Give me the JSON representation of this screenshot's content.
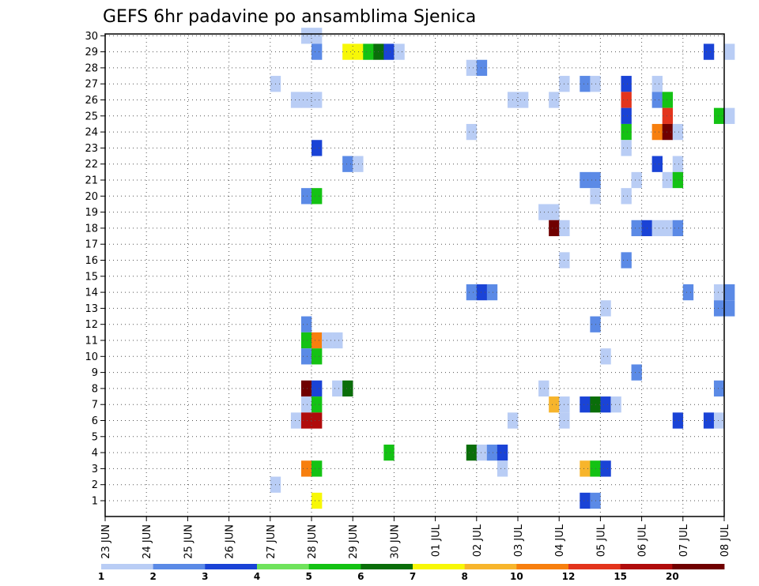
{
  "chart_data": {
    "type": "heatmap",
    "title": "GEFS 6hr padavine po ansamblima Sjenica",
    "x_tick_labels": [
      "23 JUN",
      "24 JUN",
      "25 JUN",
      "26 JUN",
      "27 JUN",
      "28 JUN",
      "29 JUN",
      "30 JUN",
      "01 JUL",
      "02 JUL",
      "03 JUL",
      "04 JUL",
      "05 JUL",
      "06 JUL",
      "07 JUL",
      "08 JUL"
    ],
    "y_tick_labels": [
      "1",
      "2",
      "3",
      "4",
      "5",
      "6",
      "7",
      "8",
      "9",
      "10",
      "11",
      "12",
      "13",
      "14",
      "15",
      "16",
      "17",
      "18",
      "19",
      "20",
      "21",
      "22",
      "23",
      "24",
      "25",
      "26",
      "27",
      "28",
      "29",
      "30"
    ],
    "x_range": [
      "23 JUN",
      "08 JUL"
    ],
    "y_range": [
      1,
      30
    ],
    "time_step_hours": 6,
    "grid": "dotted",
    "colorbar": {
      "position": "bottom",
      "labels": [
        "1",
        "2",
        "3",
        "4",
        "5",
        "6",
        "7",
        "8",
        "10",
        "12",
        "15",
        "20"
      ],
      "colors": [
        "#b9cdf5",
        "#5b8ae6",
        "#1a43d6",
        "#6fe35c",
        "#14c214",
        "#0a6e0a",
        "#f7f707",
        "#f7b52c",
        "#f77f0e",
        "#e3341c",
        "#b00c0c",
        "#700000"
      ]
    },
    "cells": [
      {
        "member": 30,
        "day": "27 JUN",
        "hour": 18,
        "precip": 1.5
      },
      {
        "member": 30,
        "day": "28 JUN",
        "hour": 0,
        "precip": 1.5
      },
      {
        "member": 29,
        "day": "28 JUN",
        "hour": 0,
        "precip": 2.5
      },
      {
        "member": 29,
        "day": "28 JUN",
        "hour": 18,
        "precip": 7.5
      },
      {
        "member": 29,
        "day": "29 JUN",
        "hour": 0,
        "precip": 7.5
      },
      {
        "member": 29,
        "day": "29 JUN",
        "hour": 6,
        "precip": 5.5
      },
      {
        "member": 29,
        "day": "29 JUN",
        "hour": 12,
        "precip": 6.5
      },
      {
        "member": 29,
        "day": "29 JUN",
        "hour": 18,
        "precip": 3.5
      },
      {
        "member": 29,
        "day": "30 JUN",
        "hour": 0,
        "precip": 1.5
      },
      {
        "member": 29,
        "day": "07 JUL",
        "hour": 12,
        "precip": 3.5
      },
      {
        "member": 29,
        "day": "08 JUL",
        "hour": 0,
        "precip": 1.5
      },
      {
        "member": 28,
        "day": "01 JUL",
        "hour": 18,
        "precip": 1.5
      },
      {
        "member": 28,
        "day": "02 JUL",
        "hour": 0,
        "precip": 2.5
      },
      {
        "member": 27,
        "day": "27 JUN",
        "hour": 0,
        "precip": 1.5
      },
      {
        "member": 27,
        "day": "04 JUL",
        "hour": 0,
        "precip": 1.5
      },
      {
        "member": 27,
        "day": "04 JUL",
        "hour": 12,
        "precip": 2.5
      },
      {
        "member": 27,
        "day": "04 JUL",
        "hour": 18,
        "precip": 1.5
      },
      {
        "member": 27,
        "day": "05 JUL",
        "hour": 12,
        "precip": 3.5
      },
      {
        "member": 27,
        "day": "06 JUL",
        "hour": 6,
        "precip": 1.5
      },
      {
        "member": 26,
        "day": "27 JUN",
        "hour": 12,
        "precip": 1.5
      },
      {
        "member": 26,
        "day": "27 JUN",
        "hour": 18,
        "precip": 1.5
      },
      {
        "member": 26,
        "day": "28 JUN",
        "hour": 0,
        "precip": 1.5
      },
      {
        "member": 26,
        "day": "02 JUL",
        "hour": 18,
        "precip": 1.5
      },
      {
        "member": 26,
        "day": "03 JUL",
        "hour": 0,
        "precip": 1.5
      },
      {
        "member": 26,
        "day": "03 JUL",
        "hour": 18,
        "precip": 1.5
      },
      {
        "member": 26,
        "day": "05 JUL",
        "hour": 12,
        "precip": 13.5
      },
      {
        "member": 26,
        "day": "06 JUL",
        "hour": 6,
        "precip": 2.5
      },
      {
        "member": 26,
        "day": "06 JUL",
        "hour": 12,
        "precip": 5.5
      },
      {
        "member": 25,
        "day": "05 JUL",
        "hour": 12,
        "precip": 3.5
      },
      {
        "member": 25,
        "day": "06 JUL",
        "hour": 12,
        "precip": 13.5
      },
      {
        "member": 25,
        "day": "07 JUL",
        "hour": 18,
        "precip": 5.5
      },
      {
        "member": 25,
        "day": "08 JUL",
        "hour": 0,
        "precip": 1.5
      },
      {
        "member": 24,
        "day": "01 JUL",
        "hour": 18,
        "precip": 1.5
      },
      {
        "member": 24,
        "day": "05 JUL",
        "hour": 12,
        "precip": 5.5
      },
      {
        "member": 24,
        "day": "06 JUL",
        "hour": 6,
        "precip": 11
      },
      {
        "member": 24,
        "day": "06 JUL",
        "hour": 12,
        "precip": 22
      },
      {
        "member": 24,
        "day": "06 JUL",
        "hour": 18,
        "precip": 1.5
      },
      {
        "member": 23,
        "day": "28 JUN",
        "hour": 0,
        "precip": 3.5
      },
      {
        "member": 23,
        "day": "05 JUL",
        "hour": 12,
        "precip": 1.5
      },
      {
        "member": 22,
        "day": "28 JUN",
        "hour": 18,
        "precip": 2.5
      },
      {
        "member": 22,
        "day": "29 JUN",
        "hour": 0,
        "precip": 1.5
      },
      {
        "member": 22,
        "day": "06 JUL",
        "hour": 6,
        "precip": 3.5
      },
      {
        "member": 22,
        "day": "06 JUL",
        "hour": 18,
        "precip": 1.5
      },
      {
        "member": 21,
        "day": "04 JUL",
        "hour": 12,
        "precip": 2.5
      },
      {
        "member": 21,
        "day": "04 JUL",
        "hour": 18,
        "precip": 2.5
      },
      {
        "member": 21,
        "day": "05 JUL",
        "hour": 18,
        "precip": 1.5
      },
      {
        "member": 21,
        "day": "06 JUL",
        "hour": 12,
        "precip": 1.5
      },
      {
        "member": 21,
        "day": "06 JUL",
        "hour": 18,
        "precip": 5.5
      },
      {
        "member": 20,
        "day": "27 JUN",
        "hour": 18,
        "precip": 2.5
      },
      {
        "member": 20,
        "day": "28 JUN",
        "hour": 0,
        "precip": 5.5
      },
      {
        "member": 20,
        "day": "04 JUL",
        "hour": 18,
        "precip": 1.5
      },
      {
        "member": 20,
        "day": "05 JUL",
        "hour": 12,
        "precip": 1.5
      },
      {
        "member": 19,
        "day": "03 JUL",
        "hour": 12,
        "precip": 1.5
      },
      {
        "member": 19,
        "day": "03 JUL",
        "hour": 18,
        "precip": 1.5
      },
      {
        "member": 18,
        "day": "03 JUL",
        "hour": 18,
        "precip": 22
      },
      {
        "member": 18,
        "day": "04 JUL",
        "hour": 0,
        "precip": 1.5
      },
      {
        "member": 18,
        "day": "05 JUL",
        "hour": 18,
        "precip": 2.5
      },
      {
        "member": 18,
        "day": "06 JUL",
        "hour": 0,
        "precip": 3.5
      },
      {
        "member": 18,
        "day": "06 JUL",
        "hour": 6,
        "precip": 1.5
      },
      {
        "member": 18,
        "day": "06 JUL",
        "hour": 12,
        "precip": 1.5
      },
      {
        "member": 18,
        "day": "06 JUL",
        "hour": 18,
        "precip": 2.5
      },
      {
        "member": 16,
        "day": "04 JUL",
        "hour": 0,
        "precip": 1.5
      },
      {
        "member": 16,
        "day": "05 JUL",
        "hour": 12,
        "precip": 2.5
      },
      {
        "member": 14,
        "day": "01 JUL",
        "hour": 18,
        "precip": 2.5
      },
      {
        "member": 14,
        "day": "02 JUL",
        "hour": 0,
        "precip": 3.5
      },
      {
        "member": 14,
        "day": "02 JUL",
        "hour": 6,
        "precip": 2.5
      },
      {
        "member": 14,
        "day": "07 JUL",
        "hour": 0,
        "precip": 2.5
      },
      {
        "member": 14,
        "day": "07 JUL",
        "hour": 18,
        "precip": 1.5
      },
      {
        "member": 14,
        "day": "08 JUL",
        "hour": 0,
        "precip": 2.5
      },
      {
        "member": 13,
        "day": "05 JUL",
        "hour": 0,
        "precip": 1.5
      },
      {
        "member": 13,
        "day": "07 JUL",
        "hour": 18,
        "precip": 2.5
      },
      {
        "member": 13,
        "day": "08 JUL",
        "hour": 0,
        "precip": 2.5
      },
      {
        "member": 12,
        "day": "27 JUN",
        "hour": 18,
        "precip": 2.5
      },
      {
        "member": 12,
        "day": "04 JUL",
        "hour": 18,
        "precip": 2.5
      },
      {
        "member": 11,
        "day": "27 JUN",
        "hour": 18,
        "precip": 5.5
      },
      {
        "member": 11,
        "day": "28 JUN",
        "hour": 0,
        "precip": 11
      },
      {
        "member": 11,
        "day": "28 JUN",
        "hour": 6,
        "precip": 1.5
      },
      {
        "member": 11,
        "day": "28 JUN",
        "hour": 12,
        "precip": 1.5
      },
      {
        "member": 10,
        "day": "27 JUN",
        "hour": 18,
        "precip": 2.5
      },
      {
        "member": 10,
        "day": "28 JUN",
        "hour": 0,
        "precip": 5.5
      },
      {
        "member": 10,
        "day": "05 JUL",
        "hour": 0,
        "precip": 1.5
      },
      {
        "member": 9,
        "day": "05 JUL",
        "hour": 18,
        "precip": 2.5
      },
      {
        "member": 8,
        "day": "27 JUN",
        "hour": 18,
        "precip": 22
      },
      {
        "member": 8,
        "day": "28 JUN",
        "hour": 0,
        "precip": 3.5
      },
      {
        "member": 8,
        "day": "28 JUN",
        "hour": 12,
        "precip": 1.5
      },
      {
        "member": 8,
        "day": "28 JUN",
        "hour": 18,
        "precip": 6.5
      },
      {
        "member": 8,
        "day": "03 JUL",
        "hour": 12,
        "precip": 1.5
      },
      {
        "member": 8,
        "day": "07 JUL",
        "hour": 18,
        "precip": 2.5
      },
      {
        "member": 7,
        "day": "27 JUN",
        "hour": 18,
        "precip": 1.5
      },
      {
        "member": 7,
        "day": "28 JUN",
        "hour": 0,
        "precip": 5.5
      },
      {
        "member": 7,
        "day": "03 JUL",
        "hour": 18,
        "precip": 9
      },
      {
        "member": 7,
        "day": "04 JUL",
        "hour": 0,
        "precip": 1.5
      },
      {
        "member": 7,
        "day": "04 JUL",
        "hour": 12,
        "precip": 3.5
      },
      {
        "member": 7,
        "day": "04 JUL",
        "hour": 18,
        "precip": 6.5
      },
      {
        "member": 7,
        "day": "05 JUL",
        "hour": 0,
        "precip": 3.5
      },
      {
        "member": 7,
        "day": "05 JUL",
        "hour": 6,
        "precip": 1.5
      },
      {
        "member": 6,
        "day": "27 JUN",
        "hour": 12,
        "precip": 1.5
      },
      {
        "member": 6,
        "day": "27 JUN",
        "hour": 18,
        "precip": 17
      },
      {
        "member": 6,
        "day": "28 JUN",
        "hour": 0,
        "precip": 17
      },
      {
        "member": 6,
        "day": "02 JUL",
        "hour": 18,
        "precip": 1.5
      },
      {
        "member": 6,
        "day": "04 JUL",
        "hour": 0,
        "precip": 1.5
      },
      {
        "member": 6,
        "day": "06 JUL",
        "hour": 18,
        "precip": 3.5
      },
      {
        "member": 6,
        "day": "07 JUL",
        "hour": 12,
        "precip": 3.5
      },
      {
        "member": 6,
        "day": "07 JUL",
        "hour": 18,
        "precip": 1.5
      },
      {
        "member": 4,
        "day": "29 JUN",
        "hour": 18,
        "precip": 5.5
      },
      {
        "member": 4,
        "day": "01 JUL",
        "hour": 18,
        "precip": 6.5
      },
      {
        "member": 4,
        "day": "02 JUL",
        "hour": 0,
        "precip": 1.5
      },
      {
        "member": 4,
        "day": "02 JUL",
        "hour": 6,
        "precip": 2.5
      },
      {
        "member": 4,
        "day": "02 JUL",
        "hour": 12,
        "precip": 3.5
      },
      {
        "member": 3,
        "day": "27 JUN",
        "hour": 18,
        "precip": 11
      },
      {
        "member": 3,
        "day": "28 JUN",
        "hour": 0,
        "precip": 5.5
      },
      {
        "member": 3,
        "day": "02 JUL",
        "hour": 12,
        "precip": 1.5
      },
      {
        "member": 3,
        "day": "04 JUL",
        "hour": 12,
        "precip": 9
      },
      {
        "member": 3,
        "day": "04 JUL",
        "hour": 18,
        "precip": 5.5
      },
      {
        "member": 3,
        "day": "05 JUL",
        "hour": 0,
        "precip": 3.5
      },
      {
        "member": 2,
        "day": "27 JUN",
        "hour": 0,
        "precip": 1.5
      },
      {
        "member": 1,
        "day": "28 JUN",
        "hour": 0,
        "precip": 7.5
      },
      {
        "member": 1,
        "day": "04 JUL",
        "hour": 12,
        "precip": 3.5
      },
      {
        "member": 1,
        "day": "04 JUL",
        "hour": 18,
        "precip": 2.5
      }
    ]
  }
}
